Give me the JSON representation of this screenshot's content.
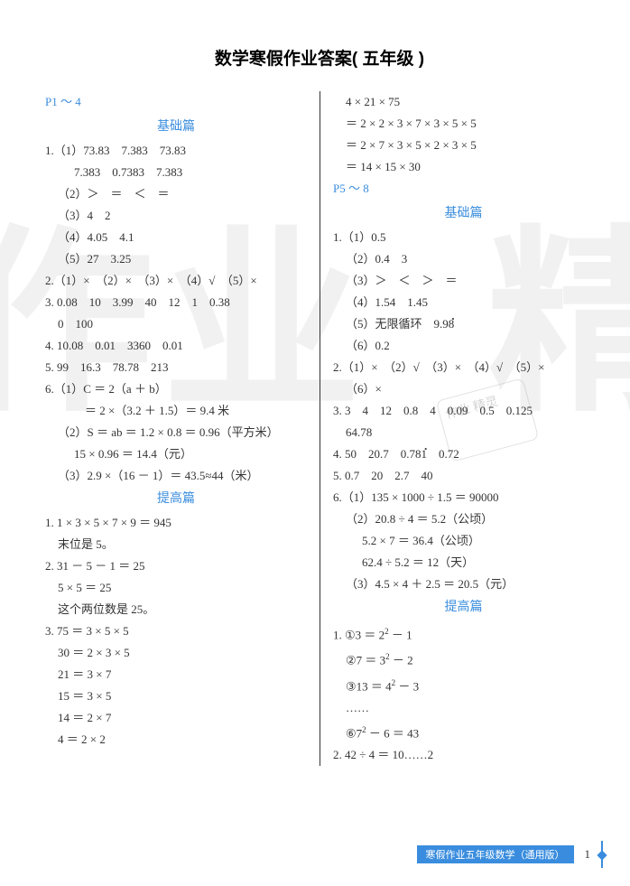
{
  "title": "数学寒假作业答案( 五年级 )",
  "watermark1": "作业",
  "watermark2": "精",
  "stamp_text": "作业 精灵",
  "footer_label": "寒假作业五年级数学（通用版）",
  "page_number": "1",
  "left": {
    "pref1": "P1 ～ 4",
    "sec1": "基础篇",
    "l1": "1.（1）73.83　7.383　73.83",
    "l2": "7.383　0.7383　7.383",
    "l3": "（2）＞　＝　＜　＝",
    "l4": "（3）4　2",
    "l5": "（4）4.05　4.1",
    "l6": "（5）27　3.25",
    "l7": "2.（1）×　（2）×　（3）×　（4）√　（5）×",
    "l8": "3. 0.08　10　3.99　40　12　1　0.38",
    "l9": "0　100",
    "l10": "4. 10.08　0.01　3360　0.01",
    "l11": "5. 99　16.3　78.78　213",
    "l12": "6.（1）C ＝ 2（a ＋ b）",
    "l13": "＝ 2 ×（3.2 ＋ 1.5）＝ 9.4 米",
    "l14": "（2）S ＝ ab ＝ 1.2 × 0.8 ＝ 0.96（平方米）",
    "l15": "15 × 0.96 ＝ 14.4（元）",
    "l16": "（3）2.9 ×（16 － 1）＝ 43.5≈44（米）",
    "sec2": "提高篇",
    "l17": "1. 1 × 3 × 5 × 7 × 9 ＝ 945",
    "l18": "末位是 5。",
    "l19": "2. 31 － 5 － 1 ＝ 25",
    "l20": "5 × 5 ＝ 25",
    "l21": "这个两位数是 25。",
    "l22": "3. 75 ＝ 3 × 5 × 5",
    "l23": "30 ＝ 2 × 3 × 5",
    "l24": "21 ＝ 3 × 7",
    "l25": "15 ＝ 3 × 5",
    "l26": "14 ＝ 2 × 7",
    "l27": "4 ＝ 2 × 2"
  },
  "right": {
    "l1": "4 × 21 × 75",
    "l2": "＝ 2 × 2 × 3 × 7 × 3 × 5 × 5",
    "l3": "＝ 2 × 7 × 3 × 5 × 2 × 3 × 5",
    "l4": "＝ 14 × 15 × 30",
    "pref1": "P5 ～ 8",
    "sec1": "基础篇",
    "l5": "1.（1）0.5",
    "l6": "（2）0.4　3",
    "l7": "（3）＞　＜　＞　＝",
    "l8": "（4）1.54　1.45",
    "l9a": "（5）无限循环　9.9",
    "l9b": "8",
    "l10": "（6）0.2",
    "l11": "2.（1）×　（2）√　（3）×　（4）√　（5）×",
    "l12": "（6）×",
    "l13": "3. 3　4　12　0.8　4　0.09　0.5　0.125",
    "l14": "64.78",
    "l15a": "4. 50　20.7　0.78",
    "l15b": "1",
    "l15c": "　0.72",
    "l16": "5. 0.7　20　2.7　40",
    "l17": "6.（1）135 × 1000 ÷ 1.5 ＝ 90000",
    "l18": "（2）20.8 ÷ 4 ＝ 5.2（公顷）",
    "l19": "5.2 × 7 ＝ 36.4（公顷）",
    "l20": "62.4 ÷ 5.2 ＝ 12（天）",
    "l21": "（3）4.5 × 4 ＋ 2.5 ＝ 20.5（元）",
    "sec2": "提高篇",
    "l22a": "1. ①3 ＝ 2",
    "l22b": " － 1",
    "l23a": "②7 ＝ 3",
    "l23b": " － 2",
    "l24a": "③13 ＝ 4",
    "l24b": " － 3",
    "l25": "……",
    "l26a": "⑥7",
    "l26b": " － 6 ＝ 43",
    "l27": "2. 42 ÷ 4 ＝ 10……2"
  }
}
